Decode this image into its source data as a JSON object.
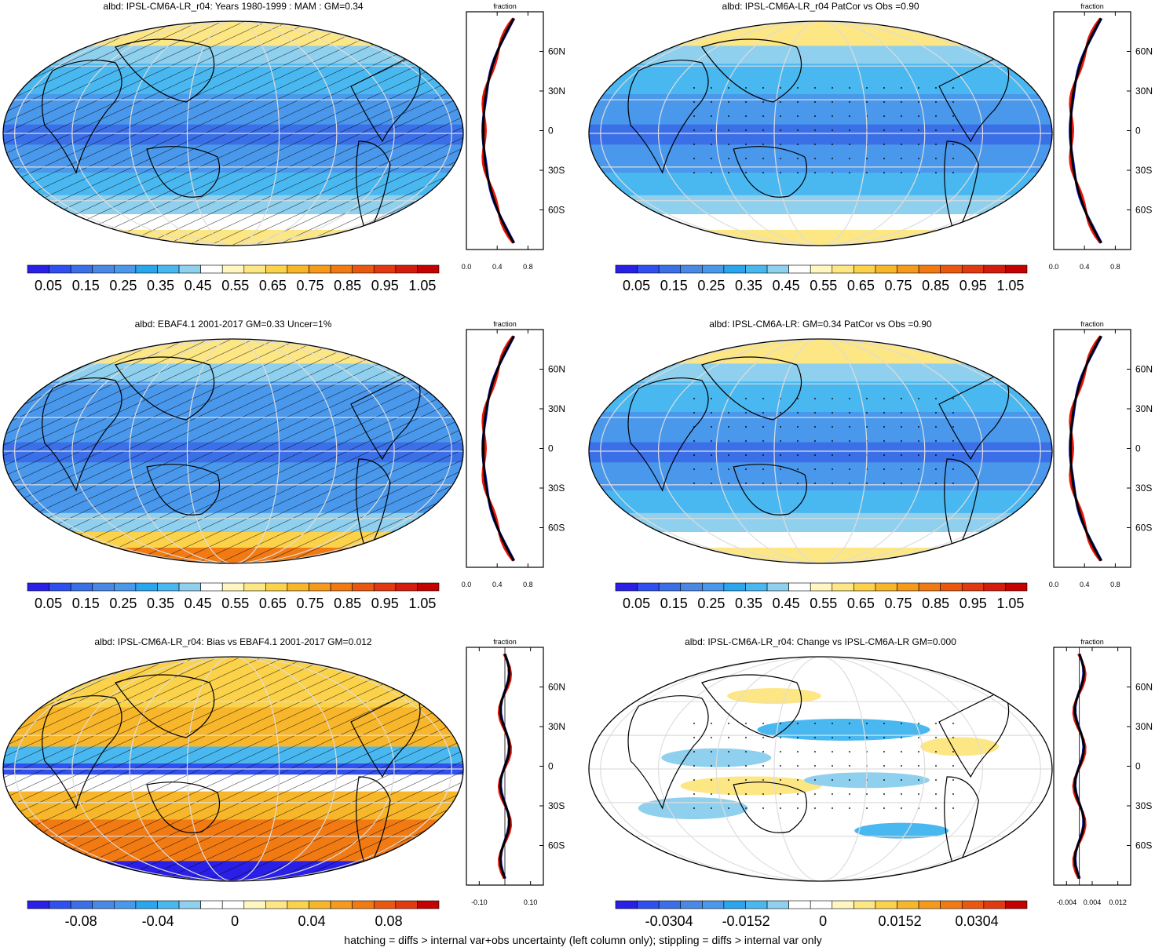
{
  "footer": "hatching = diffs > internal var+obs uncertainty (left column only); stippling = diffs > internal var only",
  "colors": {
    "abs_scale": [
      "#2a1fe6",
      "#2f4ff0",
      "#3a6fe8",
      "#4a88e6",
      "#4a98ec",
      "#2aa6ee",
      "#4ab8f0",
      "#8fd0ee",
      "#ffffff",
      "#fff6c0",
      "#fde684",
      "#fbd24a",
      "#f8b62a",
      "#f79a1c",
      "#f27a12",
      "#ea5810",
      "#e23a10",
      "#d41c0c",
      "#c40000"
    ],
    "diff_scale": [
      "#2a1fe6",
      "#2f4ff0",
      "#3a6fe8",
      "#4a88e6",
      "#4a98ec",
      "#2aa6ee",
      "#4ab8f0",
      "#8fd0ee",
      "#ffffff",
      "#ffffff",
      "#fff6c0",
      "#fde684",
      "#fbd24a",
      "#f8b62a",
      "#f79a1c",
      "#f27a12",
      "#ea5810",
      "#e23a10",
      "#c40000"
    ],
    "line_red": "#e8160e",
    "line_blue": "#1818e6",
    "line_black": "#000000"
  },
  "panels": [
    {
      "title": "albd: IPSL-CM6A-LR_r04: Years 1980-1999 : MAM : GM=0.34",
      "map_style": "abs",
      "hatched": true,
      "dotted": false,
      "colorbar_labels": [
        "0.05",
        "0.15",
        "0.25",
        "0.35",
        "0.45",
        "0.55",
        "0.65",
        "0.75",
        "0.85",
        "0.95",
        "1.05"
      ],
      "profile": {
        "x_label": "fraction",
        "x_ticks": [
          "0.0",
          "0.4",
          "0.8"
        ],
        "x_tick_values": [
          0.0,
          0.4,
          0.8
        ],
        "xlim": [
          0,
          1.0
        ],
        "lat_labels": [
          "60N",
          "30N",
          "0",
          "30S",
          "60S"
        ],
        "lat_values": [
          60,
          30,
          0,
          -30,
          -60
        ]
      }
    },
    {
      "title": "albd: IPSL-CM6A-LR_r04 PatCor vs Obs =0.90",
      "map_style": "abs",
      "hatched": false,
      "dotted": true,
      "colorbar_labels": [
        "0.05",
        "0.15",
        "0.25",
        "0.35",
        "0.45",
        "0.55",
        "0.65",
        "0.75",
        "0.85",
        "0.95",
        "1.05"
      ],
      "profile": {
        "x_label": "fraction",
        "x_ticks": [
          "0.0",
          "0.4",
          "0.8"
        ],
        "x_tick_values": [
          0.0,
          0.4,
          0.8
        ],
        "xlim": [
          0,
          1.0
        ],
        "lat_labels": [
          "60N",
          "30N",
          "0",
          "30S",
          "60S"
        ],
        "lat_values": [
          60,
          30,
          0,
          -30,
          -60
        ]
      }
    },
    {
      "title": "albd: EBAF4.1 2001-2017 GM=0.33 Uncer=1%",
      "map_style": "abs_obs",
      "hatched": true,
      "dotted": false,
      "colorbar_labels": [
        "0.05",
        "0.15",
        "0.25",
        "0.35",
        "0.45",
        "0.55",
        "0.65",
        "0.75",
        "0.85",
        "0.95",
        "1.05"
      ],
      "profile": {
        "x_label": "fraction",
        "x_ticks": [
          "0.0",
          "0.4",
          "0.8"
        ],
        "x_tick_values": [
          0.0,
          0.4,
          0.8
        ],
        "xlim": [
          0,
          1.0
        ],
        "lat_labels": [
          "60N",
          "30N",
          "0",
          "30S",
          "60S"
        ],
        "lat_values": [
          60,
          30,
          0,
          -30,
          -60
        ]
      }
    },
    {
      "title": "albd: IPSL-CM6A-LR: GM=0.34 PatCor vs Obs =0.90",
      "map_style": "abs",
      "hatched": false,
      "dotted": true,
      "colorbar_labels": [
        "0.05",
        "0.15",
        "0.25",
        "0.35",
        "0.45",
        "0.55",
        "0.65",
        "0.75",
        "0.85",
        "0.95",
        "1.05"
      ],
      "profile": {
        "x_label": "fraction",
        "x_ticks": [
          "0.0",
          "0.4",
          "0.8"
        ],
        "x_tick_values": [
          0.0,
          0.4,
          0.8
        ],
        "xlim": [
          0,
          1.0
        ],
        "lat_labels": [
          "60N",
          "30N",
          "0",
          "30S",
          "60S"
        ],
        "lat_values": [
          60,
          30,
          0,
          -30,
          -60
        ]
      }
    },
    {
      "title": "albd: IPSL-CM6A-LR_r04: Bias vs EBAF4.1 2001-2017 GM=0.012",
      "map_style": "bias",
      "hatched": true,
      "dotted": false,
      "colorbar_labels": [
        "-0.08",
        "-0.04",
        "0",
        "0.04",
        "0.08"
      ],
      "profile": {
        "x_label": "fraction",
        "x_ticks": [
          "-0.10",
          "0.10"
        ],
        "x_tick_values": [
          -0.1,
          0.1
        ],
        "xlim": [
          -0.15,
          0.15
        ],
        "lat_labels": [
          "60N",
          "30N",
          "0",
          "30S",
          "60S"
        ],
        "lat_values": [
          60,
          30,
          0,
          -30,
          -60
        ]
      }
    },
    {
      "title": "albd: IPSL-CM6A-LR_r04: Change vs IPSL-CM6A-LR GM=0.000",
      "map_style": "change",
      "hatched": false,
      "dotted": true,
      "colorbar_labels": [
        "-0.0304",
        "-0.0152",
        "0",
        "0.0152",
        "0.0304"
      ],
      "profile": {
        "x_label": "fraction",
        "x_ticks": [
          "-0.004",
          "0.004",
          "0.012"
        ],
        "x_tick_values": [
          -0.004,
          0.004,
          0.012
        ],
        "xlim": [
          -0.008,
          0.016
        ],
        "lat_labels": [
          "60N",
          "30N",
          "0",
          "30S",
          "60S"
        ],
        "lat_values": [
          60,
          30,
          0,
          -30,
          -60
        ]
      }
    }
  ]
}
